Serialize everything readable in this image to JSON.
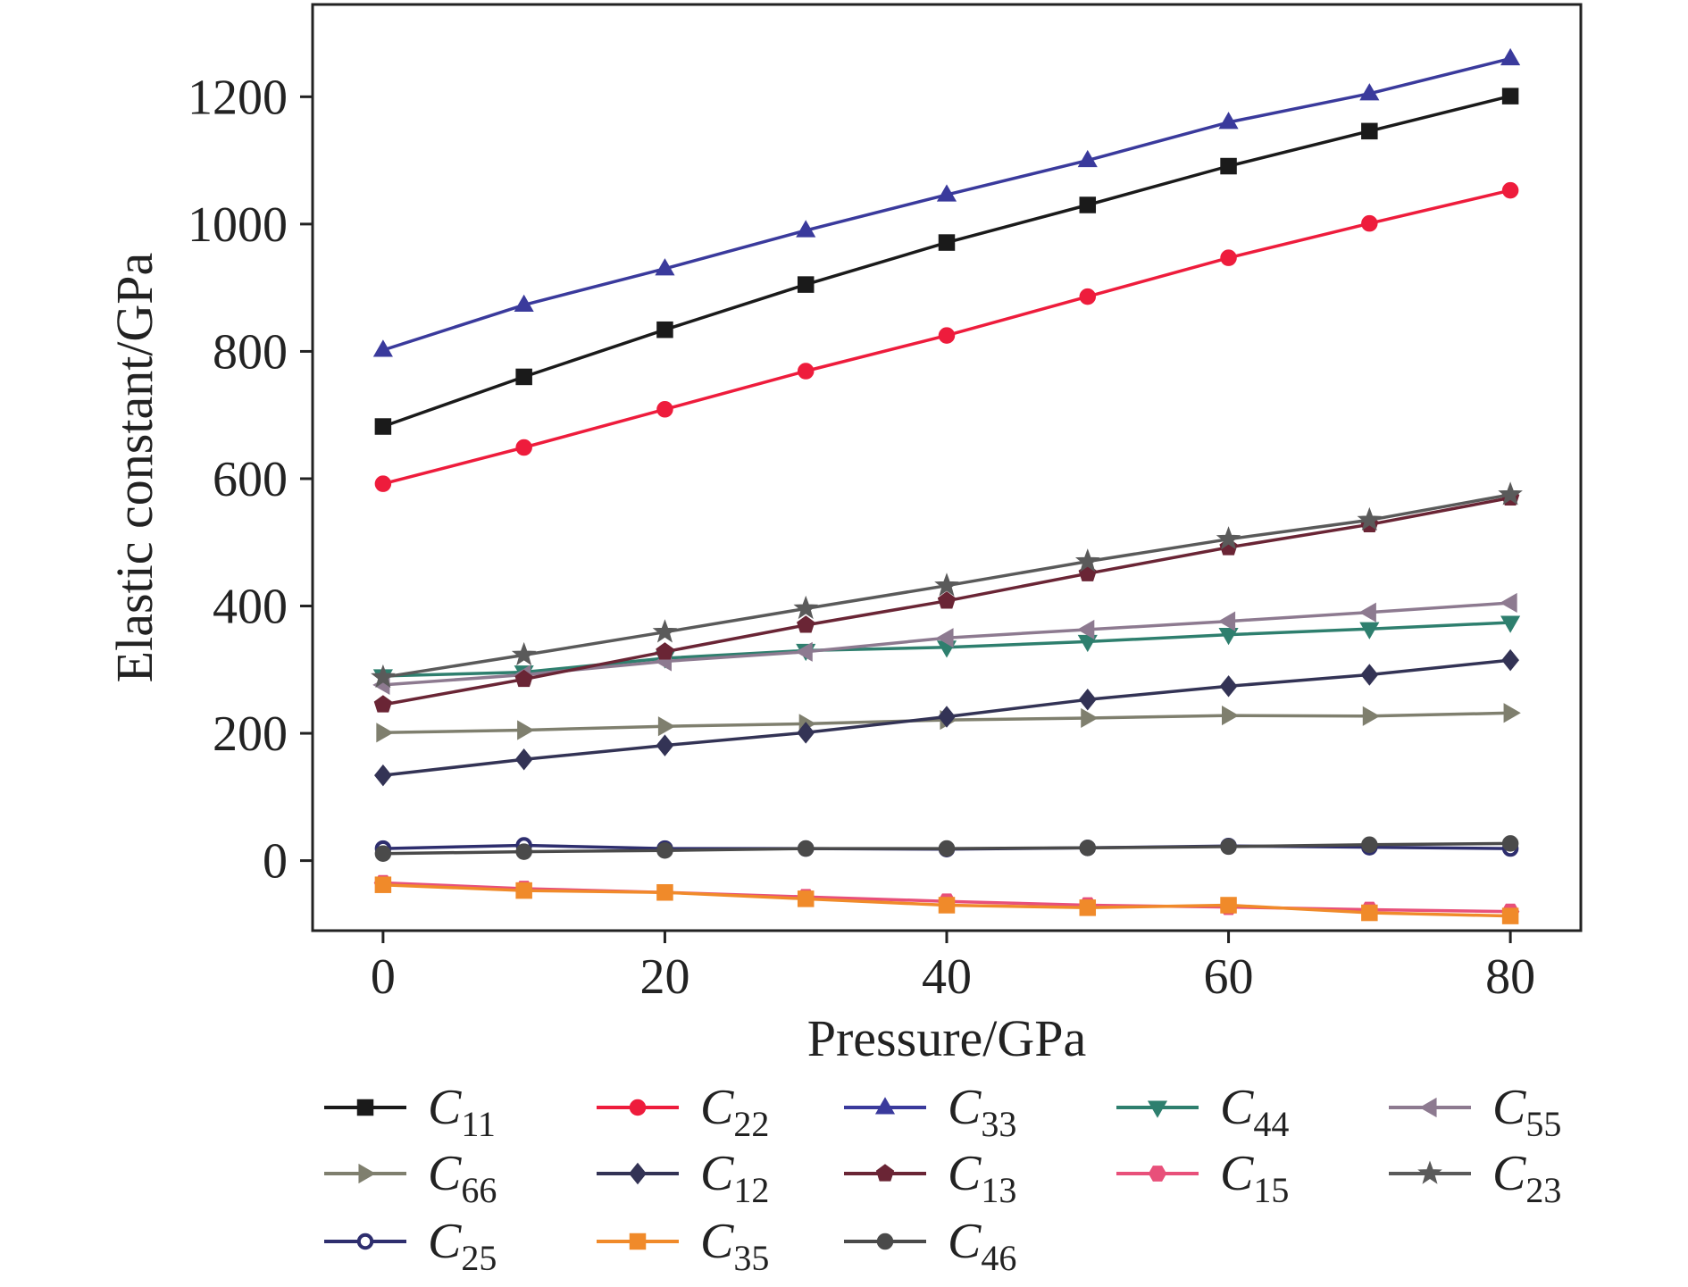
{
  "chart_data": {
    "type": "line",
    "xlabel": "Pressure/GPa",
    "ylabel": "Elastic constant/GPa",
    "xlim": [
      -5,
      85
    ],
    "ylim": [
      -110,
      1345
    ],
    "xticks": [
      "0",
      "20",
      "40",
      "60",
      "80"
    ],
    "yticks": [
      "0",
      "200",
      "400",
      "600",
      "800",
      "1000",
      "1200"
    ],
    "x": [
      0,
      10,
      20,
      30,
      40,
      50,
      60,
      70,
      80
    ],
    "grid": false,
    "legend_position": "bottom",
    "series": [
      {
        "name": "C",
        "sub": "11",
        "color": "#1a1a1a",
        "marker": "square",
        "values": [
          682,
          760,
          834,
          905,
          971,
          1030,
          1091,
          1146,
          1201
        ]
      },
      {
        "name": "C",
        "sub": "22",
        "color": "#ee1c3c",
        "marker": "circle",
        "values": [
          592,
          649,
          709,
          769,
          825,
          886,
          947,
          1001,
          1053
        ]
      },
      {
        "name": "C",
        "sub": "33",
        "color": "#3a3a9c",
        "marker": "triangle-up",
        "values": [
          802,
          873,
          930,
          990,
          1046,
          1100,
          1160,
          1205,
          1260
        ]
      },
      {
        "name": "C",
        "sub": "44",
        "color": "#2e7f6e",
        "marker": "triangle-down",
        "values": [
          290,
          296,
          318,
          330,
          335,
          344,
          355,
          364,
          374
        ]
      },
      {
        "name": "C",
        "sub": "55",
        "color": "#8d7a90",
        "marker": "triangle-left",
        "values": [
          276,
          292,
          313,
          328,
          350,
          363,
          376,
          390,
          405
        ]
      },
      {
        "name": "C",
        "sub": "66",
        "color": "#7f7f6e",
        "marker": "triangle-right",
        "values": [
          201,
          205,
          211,
          215,
          221,
          224,
          228,
          227,
          232
        ]
      },
      {
        "name": "C",
        "sub": "12",
        "color": "#333355",
        "marker": "diamond",
        "values": [
          134,
          159,
          181,
          201,
          226,
          253,
          274,
          292,
          315
        ]
      },
      {
        "name": "C",
        "sub": "13",
        "color": "#6a2535",
        "marker": "pentagon",
        "values": [
          245,
          285,
          328,
          370,
          408,
          451,
          492,
          528,
          570
        ]
      },
      {
        "name": "C",
        "sub": "15",
        "color": "#e8507a",
        "marker": "hexagon",
        "values": [
          -35,
          -44,
          -50,
          -57,
          -64,
          -70,
          -73,
          -77,
          -80
        ]
      },
      {
        "name": "C",
        "sub": "23",
        "color": "#5a5a5a",
        "marker": "star",
        "values": [
          288,
          323,
          359,
          396,
          432,
          470,
          505,
          535,
          575
        ]
      },
      {
        "name": "C",
        "sub": "25",
        "color": "#2e2e6e",
        "marker": "circle-open",
        "values": [
          19,
          24,
          19,
          19,
          18,
          20,
          23,
          21,
          19
        ]
      },
      {
        "name": "C",
        "sub": "35",
        "color": "#f08a2a",
        "marker": "square",
        "values": [
          -38,
          -47,
          -50,
          -60,
          -70,
          -74,
          -70,
          -82,
          -87
        ]
      },
      {
        "name": "C",
        "sub": "46",
        "color": "#4a4a4a",
        "marker": "circle",
        "values": [
          11,
          14,
          16,
          19,
          19,
          20,
          22,
          25,
          27
        ]
      }
    ]
  }
}
